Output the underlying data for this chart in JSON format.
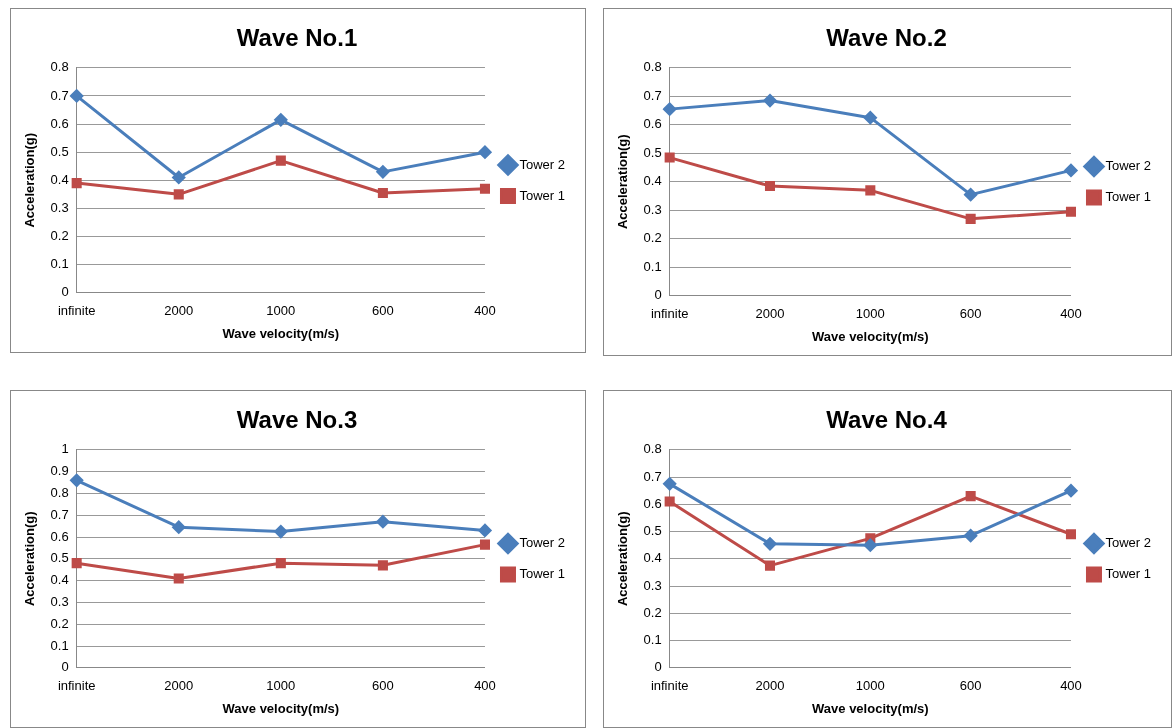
{
  "chart_data": [
    {
      "type": "line",
      "title": "Wave No.1",
      "xlabel": "Wave velocity(m/s)",
      "ylabel": "Acceleration(g)",
      "categories": [
        "infinite",
        "2000",
        "1000",
        "600",
        "400"
      ],
      "ylim": [
        0,
        0.8
      ],
      "yticks": [
        0,
        0.1,
        0.2,
        0.3,
        0.4,
        0.5,
        0.6,
        0.7,
        0.8
      ],
      "grid": "y",
      "legend": "right",
      "series": [
        {
          "name": "Tower 2",
          "color": "#4a7ebb",
          "marker": "diamond",
          "values": [
            0.7,
            0.41,
            0.615,
            0.43,
            0.5
          ]
        },
        {
          "name": "Tower 1",
          "color": "#be4b48",
          "marker": "square",
          "values": [
            0.39,
            0.35,
            0.47,
            0.355,
            0.37
          ]
        }
      ]
    },
    {
      "type": "line",
      "title": "Wave No.2",
      "xlabel": "Wave velocity(m/s)",
      "ylabel": "Acceleration(g)",
      "categories": [
        "infinite",
        "2000",
        "1000",
        "600",
        "400"
      ],
      "ylim": [
        0,
        0.8
      ],
      "yticks": [
        0,
        0.1,
        0.2,
        0.3,
        0.4,
        0.5,
        0.6,
        0.7,
        0.8
      ],
      "grid": "y",
      "legend": "right",
      "series": [
        {
          "name": "Tower 2",
          "color": "#4a7ebb",
          "marker": "diamond",
          "values": [
            0.655,
            0.685,
            0.625,
            0.355,
            0.44
          ]
        },
        {
          "name": "Tower 1",
          "color": "#be4b48",
          "marker": "square",
          "values": [
            0.485,
            0.385,
            0.37,
            0.27,
            0.295
          ]
        }
      ]
    },
    {
      "type": "line",
      "title": "Wave No.3",
      "xlabel": "Wave velocity(m/s)",
      "ylabel": "Acceleration(g)",
      "categories": [
        "infinite",
        "2000",
        "1000",
        "600",
        "400"
      ],
      "ylim": [
        0,
        1
      ],
      "yticks": [
        0,
        0.1,
        0.2,
        0.3,
        0.4,
        0.5,
        0.6,
        0.7,
        0.8,
        0.9,
        1
      ],
      "grid": "y",
      "legend": "right",
      "series": [
        {
          "name": "Tower 2",
          "color": "#4a7ebb",
          "marker": "diamond",
          "values": [
            0.86,
            0.645,
            0.625,
            0.67,
            0.63
          ]
        },
        {
          "name": "Tower 1",
          "color": "#be4b48",
          "marker": "square",
          "values": [
            0.48,
            0.41,
            0.48,
            0.47,
            0.565
          ]
        }
      ]
    },
    {
      "type": "line",
      "title": "Wave No.4",
      "xlabel": "Wave velocity(m/s)",
      "ylabel": "Acceleration(g)",
      "categories": [
        "infinite",
        "2000",
        "1000",
        "600",
        "400"
      ],
      "ylim": [
        0,
        0.8
      ],
      "yticks": [
        0,
        0.1,
        0.2,
        0.3,
        0.4,
        0.5,
        0.6,
        0.7,
        0.8
      ],
      "grid": "y",
      "legend": "right",
      "series": [
        {
          "name": "Tower 2",
          "color": "#4a7ebb",
          "marker": "diamond",
          "values": [
            0.675,
            0.455,
            0.45,
            0.485,
            0.65
          ]
        },
        {
          "name": "Tower 1",
          "color": "#be4b48",
          "marker": "square",
          "values": [
            0.61,
            0.375,
            0.475,
            0.63,
            0.49
          ]
        }
      ]
    }
  ]
}
